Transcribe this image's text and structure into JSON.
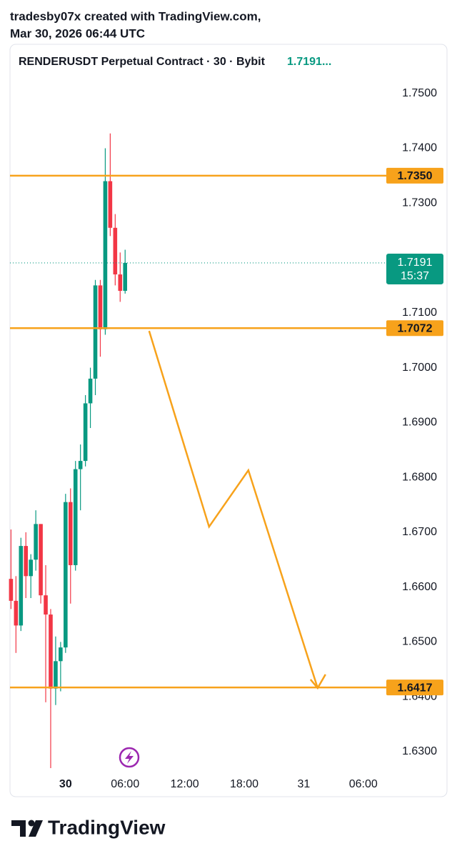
{
  "header": {
    "line1": "tradesby07x created with TradingView.com,",
    "line2": "Mar 30, 2026 06:44 UTC"
  },
  "chart_data": {
    "type": "candlestick",
    "title": "RENDERUSDT Perpetual Contract · 30 · Bybit",
    "legend_price": "1.7191...",
    "x": [
      -5.5,
      -5,
      -4.5,
      -4,
      -3.5,
      -3,
      -2.5,
      -2,
      -1.5,
      -1,
      -0.5,
      0,
      0.5,
      1,
      1.5,
      2,
      2.5,
      3,
      3.5,
      4,
      4.5,
      5,
      5.5,
      6
    ],
    "open": [
      1.6615,
      1.6575,
      1.653,
      1.6675,
      1.662,
      1.665,
      1.6715,
      1.6585,
      1.655,
      1.6415,
      1.6465,
      1.649,
      1.6755,
      1.664,
      1.6815,
      1.683,
      1.6935,
      1.698,
      1.715,
      1.707,
      1.734,
      1.7255,
      1.717,
      1.714
    ],
    "high": [
      1.6705,
      1.662,
      1.669,
      1.67,
      1.666,
      1.674,
      1.6715,
      1.664,
      1.656,
      1.651,
      1.65,
      1.677,
      1.678,
      1.683,
      1.686,
      1.695,
      1.7,
      1.716,
      1.716,
      1.74,
      1.7427,
      1.728,
      1.721,
      1.7215
    ],
    "low": [
      1.656,
      1.648,
      1.652,
      1.658,
      1.658,
      1.663,
      1.657,
      1.639,
      1.627,
      1.6385,
      1.641,
      1.648,
      1.657,
      1.663,
      1.674,
      1.682,
      1.689,
      1.695,
      1.702,
      1.706,
      1.724,
      1.715,
      1.712,
      1.7135
    ],
    "close": [
      1.6575,
      1.653,
      1.6675,
      1.662,
      1.665,
      1.6715,
      1.6585,
      1.655,
      1.6415,
      1.6465,
      1.649,
      1.6755,
      1.664,
      1.6815,
      1.683,
      1.6935,
      1.698,
      1.715,
      1.707,
      1.734,
      1.7255,
      1.717,
      1.714,
      1.7191
    ],
    "up_color": "#089981",
    "down_color": "#f23645",
    "xlim": [
      -5.6,
      31.6
    ],
    "xticks": [
      {
        "value": 0,
        "label": "30"
      },
      {
        "value": 6,
        "label": "06:00"
      },
      {
        "value": 12,
        "label": "12:00"
      },
      {
        "value": 18,
        "label": "18:00"
      },
      {
        "value": 24,
        "label": "31"
      },
      {
        "value": 30,
        "label": "06:00"
      }
    ],
    "ylim": [
      1.6257,
      1.754
    ],
    "yticks": [
      {
        "value": 1.75,
        "label": "1.7500"
      },
      {
        "value": 1.74,
        "label": "1.7400"
      },
      {
        "value": 1.73,
        "label": "1.7300"
      },
      {
        "value": 1.71,
        "label": "1.7100"
      },
      {
        "value": 1.7,
        "label": "1.7000"
      },
      {
        "value": 1.69,
        "label": "1.6900"
      },
      {
        "value": 1.68,
        "label": "1.6800"
      },
      {
        "value": 1.67,
        "label": "1.6700"
      },
      {
        "value": 1.66,
        "label": "1.6600"
      },
      {
        "value": 1.65,
        "label": "1.6500"
      },
      {
        "value": 1.64,
        "label": "1.6400"
      },
      {
        "value": 1.63,
        "label": "1.6300"
      }
    ],
    "levels": [
      {
        "value": 1.735,
        "label": "1.7350"
      },
      {
        "value": 1.7072,
        "label": "1.7072"
      },
      {
        "value": 1.6417,
        "label": "1.6417"
      }
    ],
    "level_color": "#f7a21b",
    "last_price": {
      "value": 1.7191,
      "label": "1.7191",
      "countdown": "15:37"
    },
    "projection": {
      "x": [
        8.42,
        14.46,
        18.42,
        25.4
      ],
      "y": [
        1.7067,
        1.671,
        1.6813,
        1.6416
      ]
    }
  },
  "footer": {
    "brand": "TradingView"
  }
}
